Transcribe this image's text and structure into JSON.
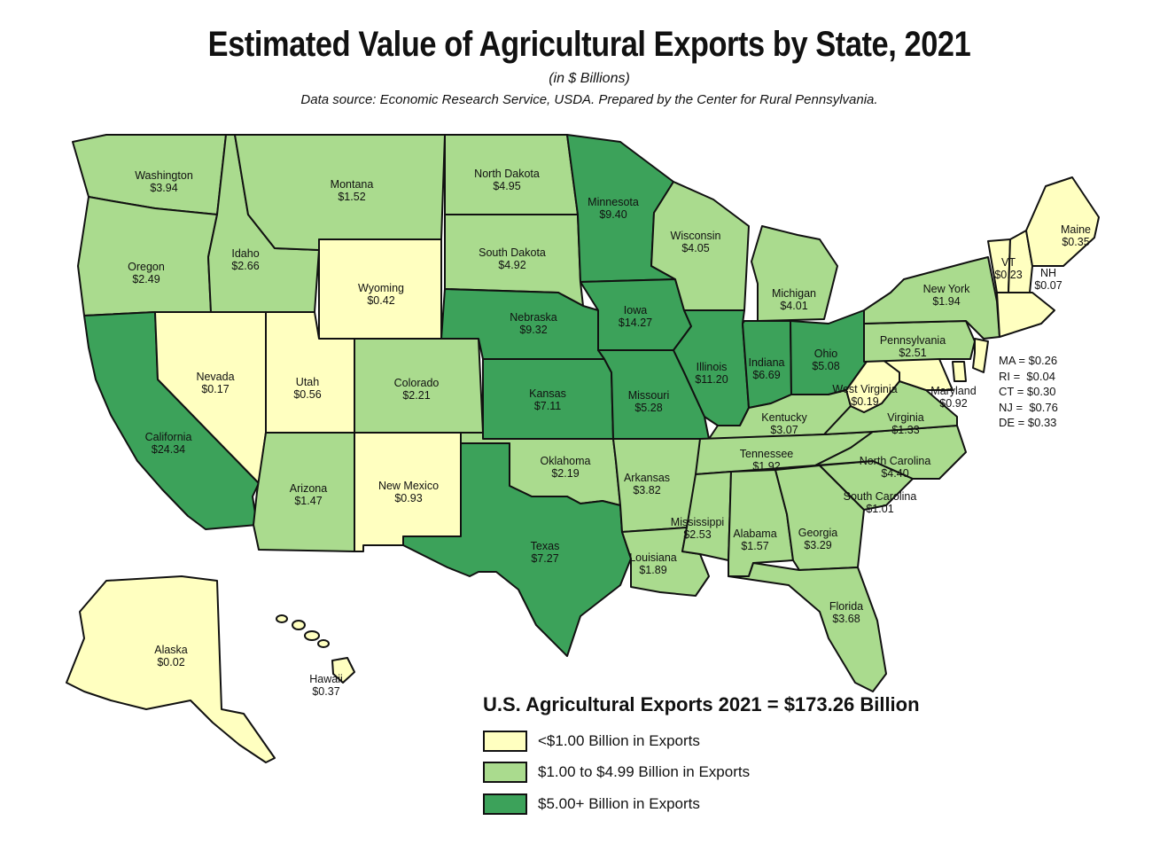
{
  "title": "Estimated Value of Agricultural Exports by State, 2021",
  "subtitle": "(in $ Billions)",
  "source": "Data source: Economic Research Service, USDA. Prepared by the Center for Rural Pennsylvania.",
  "colors": {
    "low": "#ffffc0",
    "mid": "#aadb8e",
    "high": "#3ca25a",
    "border": "#111111"
  },
  "total": "U.S. Agricultural Exports 2021 = $173.26 Billion",
  "legend": [
    {
      "label": "<$1.00 Billion in Exports",
      "tier": "low"
    },
    {
      "label": "$1.00 to $4.99 Billion in Exports",
      "tier": "mid"
    },
    {
      "label": "$5.00+ Billion in Exports",
      "tier": "high"
    }
  ],
  "small_states": [
    "MA = $0.26",
    "RI =  $0.04",
    "CT = $0.30",
    "NJ =  $0.76",
    "DE = $0.33"
  ],
  "states": [
    {
      "id": "WA",
      "name": "Washington",
      "value": "$3.94",
      "tier": "mid"
    },
    {
      "id": "OR",
      "name": "Oregon",
      "value": "$2.49",
      "tier": "mid"
    },
    {
      "id": "CA",
      "name": "California",
      "value": "$24.34",
      "tier": "high"
    },
    {
      "id": "ID",
      "name": "Idaho",
      "value": "$2.66",
      "tier": "mid"
    },
    {
      "id": "NV",
      "name": "Nevada",
      "value": "$0.17",
      "tier": "low"
    },
    {
      "id": "MT",
      "name": "Montana",
      "value": "$1.52",
      "tier": "mid"
    },
    {
      "id": "WY",
      "name": "Wyoming",
      "value": "$0.42",
      "tier": "low"
    },
    {
      "id": "UT",
      "name": "Utah",
      "value": "$0.56",
      "tier": "low"
    },
    {
      "id": "AZ",
      "name": "Arizona",
      "value": "$1.47",
      "tier": "mid"
    },
    {
      "id": "CO",
      "name": "Colorado",
      "value": "$2.21",
      "tier": "mid"
    },
    {
      "id": "NM",
      "name": "New Mexico",
      "value": "$0.93",
      "tier": "low"
    },
    {
      "id": "ND",
      "name": "North Dakota",
      "value": "$4.95",
      "tier": "mid"
    },
    {
      "id": "SD",
      "name": "South Dakota",
      "value": "$4.92",
      "tier": "mid"
    },
    {
      "id": "NE",
      "name": "Nebraska",
      "value": "$9.32",
      "tier": "high"
    },
    {
      "id": "KS",
      "name": "Kansas",
      "value": "$7.11",
      "tier": "high"
    },
    {
      "id": "OK",
      "name": "Oklahoma",
      "value": "$2.19",
      "tier": "mid"
    },
    {
      "id": "TX",
      "name": "Texas",
      "value": "$7.27",
      "tier": "high"
    },
    {
      "id": "MN",
      "name": "Minnesota",
      "value": "$9.40",
      "tier": "high"
    },
    {
      "id": "IA",
      "name": "Iowa",
      "value": "$14.27",
      "tier": "high"
    },
    {
      "id": "MO",
      "name": "Missouri",
      "value": "$5.28",
      "tier": "high"
    },
    {
      "id": "AR",
      "name": "Arkansas",
      "value": "$3.82",
      "tier": "mid"
    },
    {
      "id": "LA",
      "name": "Louisiana",
      "value": "$1.89",
      "tier": "mid"
    },
    {
      "id": "WI",
      "name": "Wisconsin",
      "value": "$4.05",
      "tier": "mid"
    },
    {
      "id": "IL",
      "name": "Illinois",
      "value": "$11.20",
      "tier": "high"
    },
    {
      "id": "MI",
      "name": "Michigan",
      "value": "$4.01",
      "tier": "mid"
    },
    {
      "id": "IN",
      "name": "Indiana",
      "value": "$6.69",
      "tier": "high"
    },
    {
      "id": "OH",
      "name": "Ohio",
      "value": "$5.08",
      "tier": "high"
    },
    {
      "id": "KY",
      "name": "Kentucky",
      "value": "$3.07",
      "tier": "mid"
    },
    {
      "id": "TN",
      "name": "Tennessee",
      "value": "$1.92",
      "tier": "mid"
    },
    {
      "id": "MS",
      "name": "Mississippi",
      "value": "$2.53",
      "tier": "mid"
    },
    {
      "id": "AL",
      "name": "Alabama",
      "value": "$1.57",
      "tier": "mid"
    },
    {
      "id": "GA",
      "name": "Georgia",
      "value": "$3.29",
      "tier": "mid"
    },
    {
      "id": "FL",
      "name": "Florida",
      "value": "$3.68",
      "tier": "mid"
    },
    {
      "id": "SC",
      "name": "South Carolina",
      "value": "$1.01",
      "tier": "mid"
    },
    {
      "id": "NC",
      "name": "North Carolina",
      "value": "$4.40",
      "tier": "mid"
    },
    {
      "id": "VA",
      "name": "Virginia",
      "value": "$1.33",
      "tier": "mid"
    },
    {
      "id": "WV",
      "name": "West Virginia",
      "value": "$0.19",
      "tier": "low"
    },
    {
      "id": "MD",
      "name": "Maryland",
      "value": "$0.92",
      "tier": "low"
    },
    {
      "id": "PA",
      "name": "Pennsylvania",
      "value": "$2.51",
      "tier": "mid"
    },
    {
      "id": "NY",
      "name": "New York",
      "value": "$1.94",
      "tier": "mid"
    },
    {
      "id": "VT",
      "name": "VT",
      "value": "$0.23",
      "tier": "low"
    },
    {
      "id": "NH",
      "name": "NH",
      "value": "$0.07",
      "tier": "low"
    },
    {
      "id": "ME",
      "name": "Maine",
      "value": "$0.35",
      "tier": "low"
    },
    {
      "id": "SNE",
      "name": "",
      "value": "",
      "tier": "low"
    },
    {
      "id": "NJ",
      "name": "",
      "value": "",
      "tier": "low"
    },
    {
      "id": "DE",
      "name": "",
      "value": "",
      "tier": "low"
    },
    {
      "id": "AK",
      "name": "Alaska",
      "value": "$0.02",
      "tier": "low"
    },
    {
      "id": "HI",
      "name": "Hawaii",
      "value": "$0.37",
      "tier": "low"
    }
  ]
}
